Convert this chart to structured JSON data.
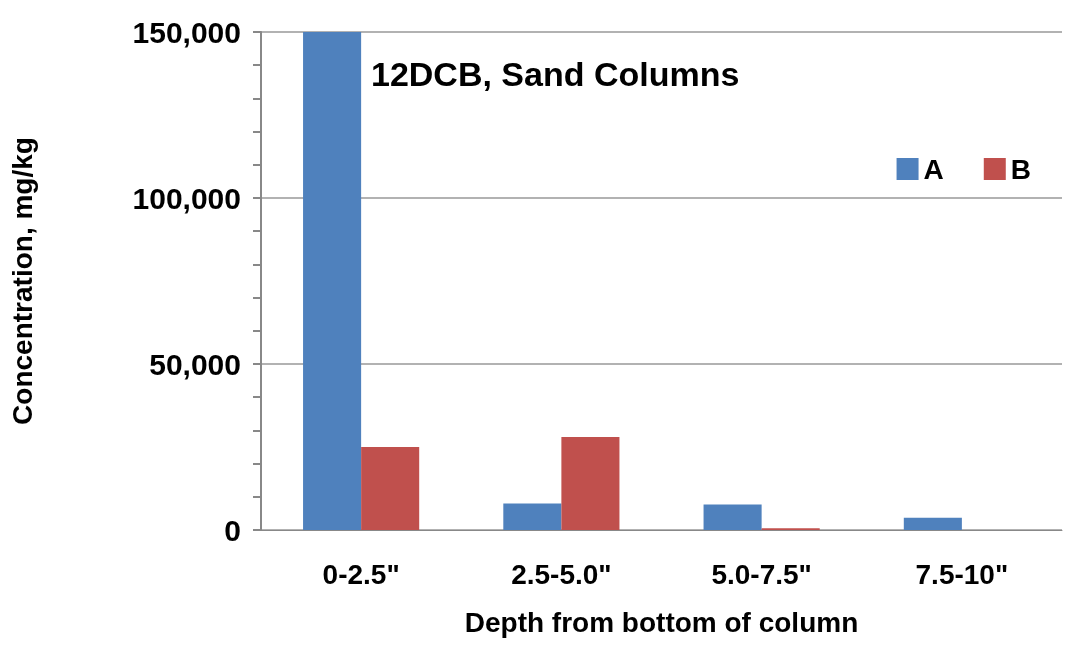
{
  "chart_data": {
    "type": "bar",
    "title": "12DCB, Sand Columns",
    "xlabel": "Depth from bottom of column",
    "ylabel": "Concentration, mg/kg",
    "categories": [
      "0-2.5\"",
      "2.5-5.0\"",
      "5.0-7.5\"",
      "7.5-10\""
    ],
    "series": [
      {
        "name": "A",
        "color": "#4f81bd",
        "values": [
          150000,
          8000,
          7700,
          3700
        ]
      },
      {
        "name": "B",
        "color": "#c0504d",
        "values": [
          25000,
          28000,
          500,
          0
        ]
      }
    ],
    "ylim": [
      0,
      150000
    ],
    "yticks": [
      {
        "value": 0,
        "label": "0"
      },
      {
        "value": 10000,
        "label": null
      },
      {
        "value": 20000,
        "label": null
      },
      {
        "value": 30000,
        "label": null
      },
      {
        "value": 40000,
        "label": null
      },
      {
        "value": 50000,
        "label": "50,000"
      },
      {
        "value": 60000,
        "label": null
      },
      {
        "value": 70000,
        "label": null
      },
      {
        "value": 80000,
        "label": null
      },
      {
        "value": 90000,
        "label": null
      },
      {
        "value": 100000,
        "label": "100,000"
      },
      {
        "value": 110000,
        "label": null
      },
      {
        "value": 120000,
        "label": null
      },
      {
        "value": 130000,
        "label": null
      },
      {
        "value": 140000,
        "label": null
      },
      {
        "value": 150000,
        "label": "150,000"
      }
    ],
    "grid": "y",
    "legend": "top right"
  }
}
